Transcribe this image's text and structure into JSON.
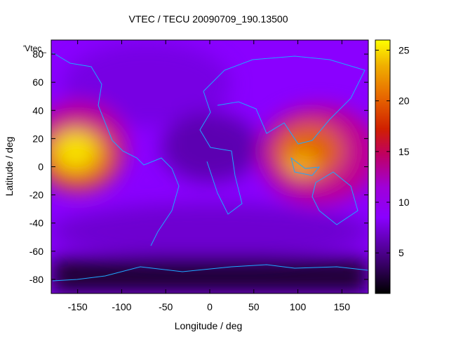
{
  "chart_data": {
    "type": "heatmap",
    "title": "VTEC / TECU 20090709_190.13500",
    "xlabel": "Longitude / deg",
    "ylabel": "Latitude / deg",
    "key_label": "'Vtec_",
    "xlim": [
      -180,
      180
    ],
    "ylim": [
      -90,
      90
    ],
    "xticks": [
      -150,
      -100,
      -50,
      0,
      50,
      100,
      150
    ],
    "yticks": [
      -80,
      -60,
      -40,
      -20,
      0,
      20,
      40,
      60,
      80
    ],
    "colorbar": {
      "range": [
        1,
        26
      ],
      "ticks": [
        5,
        10,
        15,
        20,
        25
      ]
    },
    "grid": false,
    "overlay": "continent coastlines (cyan)",
    "features": [
      {
        "name": "pacific-dayside-peak",
        "lon": -155,
        "lat": 10,
        "value": 25
      },
      {
        "name": "asia-australia-evening-peak",
        "lon": 108,
        "lat": 2,
        "value": 22
      },
      {
        "name": "southern-polar-minimum",
        "lon": 0,
        "lat": -82,
        "value": 1
      }
    ]
  }
}
